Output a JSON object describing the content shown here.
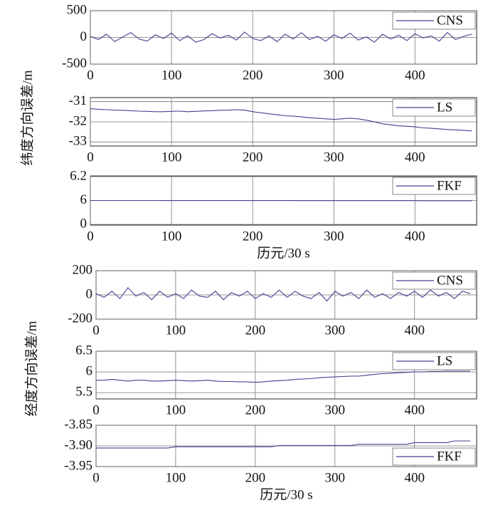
{
  "chart_data": [
    {
      "type": "line",
      "x": [
        0,
        10,
        20,
        30,
        40,
        50,
        60,
        70,
        80,
        90,
        100,
        110,
        120,
        130,
        140,
        150,
        160,
        170,
        180,
        190,
        200,
        210,
        220,
        230,
        240,
        250,
        260,
        270,
        280,
        290,
        300,
        310,
        320,
        330,
        340,
        350,
        360,
        370,
        380,
        390,
        400,
        410,
        420,
        430,
        440,
        450,
        460,
        470
      ],
      "series": [
        {
          "name": "CNS",
          "color": "#4b3b8f",
          "values": [
            20,
            -40,
            60,
            -80,
            10,
            90,
            -30,
            -70,
            50,
            -20,
            80,
            -60,
            30,
            -90,
            -40,
            70,
            -10,
            40,
            -50,
            100,
            -20,
            -60,
            30,
            -80,
            60,
            -30,
            90,
            -40,
            20,
            -70,
            50,
            -20,
            80,
            -50,
            10,
            -90,
            60,
            -30,
            40,
            -60,
            70,
            -10,
            30,
            -70,
            90,
            -40,
            20,
            60
          ]
        }
      ],
      "xlim": [
        0,
        476
      ],
      "xticks": [
        0,
        100,
        200,
        300,
        400
      ],
      "ylim": [
        -500,
        500
      ],
      "yticks": [
        500,
        0,
        -500
      ],
      "grid": true,
      "legend": "upper right"
    },
    {
      "type": "line",
      "ylabel": "纬度方向误差/m",
      "x": [
        0,
        10,
        20,
        30,
        40,
        50,
        60,
        70,
        80,
        90,
        100,
        110,
        120,
        130,
        140,
        150,
        160,
        170,
        180,
        190,
        200,
        210,
        220,
        230,
        240,
        250,
        260,
        270,
        280,
        290,
        300,
        310,
        320,
        330,
        340,
        350,
        360,
        370,
        380,
        390,
        400,
        410,
        420,
        430,
        440,
        450,
        460,
        470
      ],
      "series": [
        {
          "name": "LS",
          "color": "#4b3b8f",
          "values": [
            -31.35,
            -31.38,
            -31.4,
            -31.42,
            -31.43,
            -31.45,
            -31.47,
            -31.48,
            -31.5,
            -31.5,
            -31.48,
            -31.47,
            -31.5,
            -31.48,
            -31.46,
            -31.45,
            -31.43,
            -31.42,
            -31.4,
            -31.42,
            -31.5,
            -31.55,
            -31.6,
            -31.65,
            -31.7,
            -31.72,
            -31.75,
            -31.8,
            -31.82,
            -31.85,
            -31.88,
            -31.85,
            -31.82,
            -31.85,
            -31.92,
            -32.0,
            -32.1,
            -32.15,
            -32.2,
            -32.22,
            -32.25,
            -32.3,
            -32.32,
            -32.35,
            -32.38,
            -32.4,
            -32.42,
            -32.45
          ]
        }
      ],
      "xlim": [
        0,
        476
      ],
      "xticks": [
        0,
        100,
        200,
        300,
        400
      ],
      "ylim": [
        -33.2,
        -30.8
      ],
      "yticks": [
        -31,
        -32,
        -33
      ],
      "grid": true,
      "legend": "upper right"
    },
    {
      "type": "line",
      "xlabel": "历元/30 s",
      "x": [
        0,
        10,
        20,
        30,
        40,
        50,
        60,
        70,
        80,
        90,
        100,
        110,
        120,
        130,
        140,
        150,
        160,
        170,
        180,
        190,
        200,
        210,
        220,
        230,
        240,
        250,
        260,
        270,
        280,
        290,
        300,
        310,
        320,
        330,
        340,
        350,
        360,
        370,
        380,
        390,
        400,
        410,
        420,
        430,
        440,
        450,
        460,
        470
      ],
      "series": [
        {
          "name": "FKF",
          "color": "#4b3b8f",
          "values": [
            6.0,
            6.0,
            6.0,
            6.0,
            6.0,
            6.0,
            6.0,
            6.0,
            6.0,
            5.99,
            5.99,
            5.99,
            5.99,
            5.99,
            5.99,
            5.99,
            5.99,
            5.99,
            5.98,
            5.98,
            5.98,
            5.98,
            5.98,
            5.98,
            5.98,
            5.98,
            5.97,
            5.97,
            5.97,
            5.97,
            5.97,
            5.97,
            5.96,
            5.96,
            5.96,
            5.96,
            5.96,
            5.96,
            5.96,
            5.96,
            5.96,
            5.95,
            5.95,
            5.95,
            5.95,
            5.95,
            5.95,
            5.94
          ]
        }
      ],
      "xlim": [
        0,
        476
      ],
      "xticks": [
        0,
        100,
        200,
        300,
        400
      ],
      "ylim": [
        0,
        6.2
      ],
      "yticks": [
        6.2,
        6,
        0
      ],
      "y_scale": "broken",
      "grid": true,
      "legend": "upper right"
    },
    {
      "type": "line",
      "x": [
        0,
        10,
        20,
        30,
        40,
        50,
        60,
        70,
        80,
        90,
        100,
        110,
        120,
        130,
        140,
        150,
        160,
        170,
        180,
        190,
        200,
        210,
        220,
        230,
        240,
        250,
        260,
        270,
        280,
        290,
        300,
        310,
        320,
        330,
        340,
        350,
        360,
        370,
        380,
        390,
        400,
        410,
        420,
        430,
        440,
        450,
        460,
        470
      ],
      "series": [
        {
          "name": "CNS",
          "color": "#4b3b8f",
          "values": [
            10,
            -20,
            30,
            -30,
            60,
            -10,
            20,
            -40,
            30,
            -20,
            10,
            -30,
            40,
            -10,
            -20,
            30,
            -40,
            20,
            -10,
            30,
            -30,
            10,
            -20,
            40,
            -20,
            30,
            -10,
            -30,
            20,
            -50,
            30,
            -10,
            20,
            -30,
            40,
            -20,
            10,
            -30,
            20,
            -10,
            30,
            -20,
            40,
            -10,
            20,
            -30,
            30,
            10
          ]
        }
      ],
      "xlim": [
        0,
        478
      ],
      "xticks": [
        0,
        100,
        200,
        300,
        400
      ],
      "ylim": [
        -200,
        200
      ],
      "yticks": [
        200,
        0,
        -200
      ],
      "grid": true,
      "legend": "upper right"
    },
    {
      "type": "line",
      "ylabel": "经度方向误差/m",
      "x": [
        0,
        10,
        20,
        30,
        40,
        50,
        60,
        70,
        80,
        90,
        100,
        110,
        120,
        130,
        140,
        150,
        160,
        170,
        180,
        190,
        200,
        210,
        220,
        230,
        240,
        250,
        260,
        270,
        280,
        290,
        300,
        310,
        320,
        330,
        340,
        350,
        360,
        370,
        380,
        390,
        400,
        410,
        420,
        430,
        440,
        450,
        460,
        470
      ],
      "series": [
        {
          "name": "LS",
          "color": "#4b3b8f",
          "values": [
            5.8,
            5.8,
            5.82,
            5.8,
            5.78,
            5.8,
            5.8,
            5.78,
            5.78,
            5.79,
            5.8,
            5.79,
            5.78,
            5.79,
            5.8,
            5.78,
            5.77,
            5.77,
            5.76,
            5.76,
            5.75,
            5.76,
            5.78,
            5.79,
            5.8,
            5.82,
            5.83,
            5.84,
            5.86,
            5.87,
            5.88,
            5.89,
            5.9,
            5.9,
            5.92,
            5.94,
            5.96,
            5.97,
            5.98,
            5.99,
            6.0,
            6.0,
            6.01,
            6.01,
            6.02,
            6.02,
            6.02,
            6.02
          ]
        }
      ],
      "xlim": [
        0,
        478
      ],
      "xticks": [
        0,
        100,
        200,
        300,
        400
      ],
      "ylim": [
        5.35,
        6.5
      ],
      "yticks": [
        6.5,
        6,
        5.5
      ],
      "grid": true,
      "legend": "upper right"
    },
    {
      "type": "line",
      "xlabel": "历元/30 s",
      "x": [
        0,
        10,
        20,
        30,
        40,
        50,
        60,
        70,
        80,
        90,
        100,
        110,
        120,
        130,
        140,
        150,
        160,
        170,
        180,
        190,
        200,
        210,
        220,
        230,
        240,
        250,
        260,
        270,
        280,
        290,
        300,
        310,
        320,
        330,
        340,
        350,
        360,
        370,
        380,
        390,
        400,
        410,
        420,
        430,
        440,
        450,
        460,
        470
      ],
      "series": [
        {
          "name": "FKF",
          "color": "#4b3b8f",
          "values": [
            -3.905,
            -3.905,
            -3.905,
            -3.905,
            -3.905,
            -3.905,
            -3.905,
            -3.905,
            -3.905,
            -3.905,
            -3.902,
            -3.902,
            -3.902,
            -3.902,
            -3.902,
            -3.902,
            -3.902,
            -3.902,
            -3.902,
            -3.902,
            -3.902,
            -3.902,
            -3.902,
            -3.899,
            -3.899,
            -3.899,
            -3.899,
            -3.899,
            -3.899,
            -3.899,
            -3.899,
            -3.899,
            -3.899,
            -3.896,
            -3.896,
            -3.896,
            -3.896,
            -3.896,
            -3.896,
            -3.896,
            -3.892,
            -3.892,
            -3.892,
            -3.892,
            -3.892,
            -3.888,
            -3.888,
            -3.888
          ]
        }
      ],
      "xlim": [
        0,
        478
      ],
      "xticks": [
        0,
        100,
        200,
        300,
        400
      ],
      "ylim": [
        -3.95,
        -3.85
      ],
      "yticks": [
        -3.85,
        {
          "value": -3.9,
          "label": "-3.90"
        },
        -3.95
      ],
      "grid": true,
      "legend": "lower right"
    }
  ]
}
